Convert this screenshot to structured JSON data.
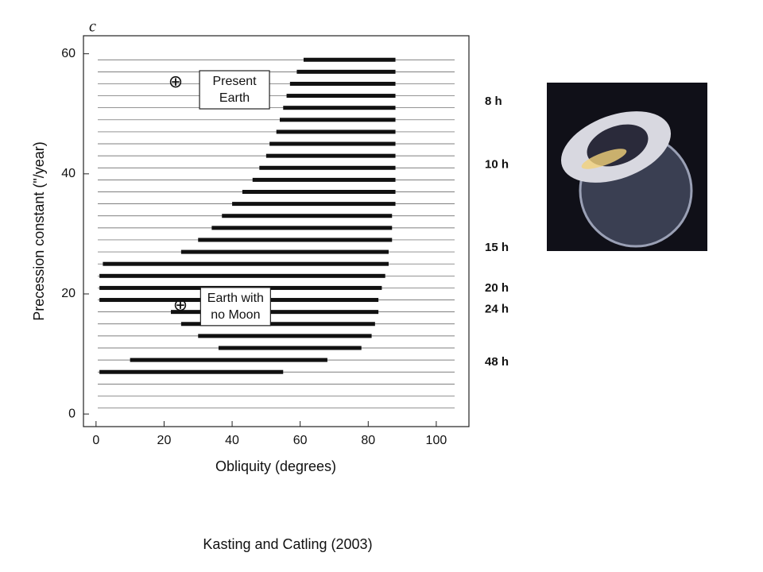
{
  "chart_data": {
    "type": "chaos_map",
    "panel_label": "c",
    "xlabel": "Obliquity (degrees)",
    "ylabel": "Precession constant (\"/year)",
    "xlim": [
      -3.7,
      109.6
    ],
    "ylim": [
      -2.1,
      63
    ],
    "xticks": [
      0,
      20,
      40,
      60,
      80,
      100
    ],
    "yticks": [
      0,
      20,
      40,
      60
    ],
    "rows": [
      59,
      57,
      55,
      53,
      51,
      49,
      47,
      45,
      43,
      41,
      39,
      37,
      35,
      33,
      31,
      29,
      27,
      25,
      23,
      21,
      19,
      17,
      15,
      13,
      11,
      9,
      7,
      5,
      3,
      1
    ],
    "chaos_low": [
      61,
      59,
      57,
      56,
      55,
      54,
      53,
      51,
      50,
      48,
      46,
      43,
      40,
      37,
      34,
      30,
      25,
      2,
      1,
      1,
      1,
      22,
      25,
      30,
      36,
      10,
      1,
      null,
      null,
      null
    ],
    "chaos_high": [
      88,
      88,
      88,
      88,
      88,
      88,
      88,
      88,
      88,
      88,
      88,
      88,
      88,
      87,
      87,
      87,
      86,
      86,
      85,
      84,
      83,
      83,
      82,
      81,
      78,
      68,
      55,
      null,
      null,
      null
    ],
    "color": "#111111",
    "day_labels": [
      {
        "label": "8 h",
        "y": 52
      },
      {
        "label": "10 h",
        "y": 41.5
      },
      {
        "label": "15 h",
        "y": 27.7
      },
      {
        "label": "20 h",
        "y": 20.9
      },
      {
        "label": "24 h",
        "y": 17.4
      },
      {
        "label": "48 h",
        "y": 8.6
      }
    ],
    "annotations": [
      {
        "symbol": "⊕",
        "x": 23.4,
        "y": 55.2,
        "lines": [
          "Present",
          "Earth"
        ],
        "box_x": 40.7,
        "box_y": 54
      },
      {
        "symbol": "⊕",
        "x": 24.8,
        "y": 18,
        "lines": [
          "Earth with",
          "no Moon"
        ],
        "box_x": 41,
        "box_y": 17.9
      }
    ]
  },
  "caption": "Kasting and Catling (2003)"
}
